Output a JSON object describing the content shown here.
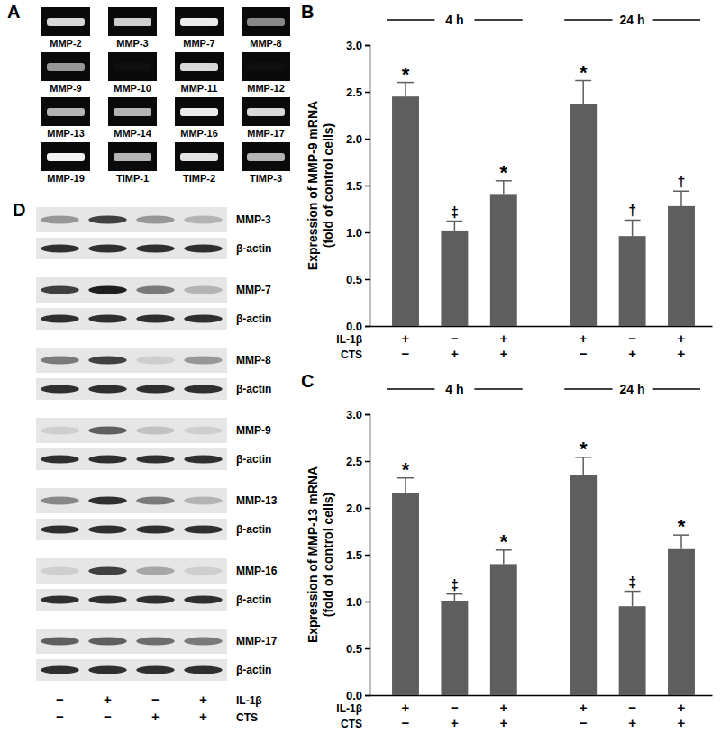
{
  "gel_panel": {
    "panel_label": "A",
    "bands": [
      {
        "label": "MMP-2",
        "intensity": 0.75
      },
      {
        "label": "MMP-3",
        "intensity": 0.7
      },
      {
        "label": "MMP-7",
        "intensity": 0.85
      },
      {
        "label": "MMP-8",
        "intensity": 0.45
      },
      {
        "label": "MMP-9",
        "intensity": 0.5
      },
      {
        "label": "MMP-10",
        "intensity": 0.05
      },
      {
        "label": "MMP-11",
        "intensity": 0.75
      },
      {
        "label": "MMP-12",
        "intensity": 0.05
      },
      {
        "label": "MMP-13",
        "intensity": 0.6
      },
      {
        "label": "MMP-14",
        "intensity": 0.6
      },
      {
        "label": "MMP-16",
        "intensity": 0.85
      },
      {
        "label": "MMP-17",
        "intensity": 0.75
      },
      {
        "label": "MMP-19",
        "intensity": 0.9
      },
      {
        "label": "TIMP-1",
        "intensity": 0.6
      },
      {
        "label": "TIMP-2",
        "intensity": 0.8
      },
      {
        "label": "TIMP-3",
        "intensity": 0.6
      }
    ]
  },
  "chart_data": [
    {
      "panel_label": "B",
      "type": "bar",
      "y_label": [
        "Expression of MMP-9 mRNA",
        "(fold of control cells)"
      ],
      "categories": [
        null,
        null,
        null,
        null,
        null,
        null
      ],
      "periods": [
        "4 h",
        "4 h",
        "4 h",
        "24 h",
        "24 h",
        "24 h"
      ],
      "values": [
        2.45,
        1.02,
        1.41,
        2.37,
        0.96,
        1.28
      ],
      "errors": [
        0.15,
        0.1,
        0.14,
        0.25,
        0.17,
        0.16
      ],
      "annotations": [
        "*",
        "‡",
        "*",
        "*",
        "†",
        "†"
      ],
      "factors": [
        {
          "name": "IL-1β",
          "levels": [
            "+",
            "−",
            "+",
            "+",
            "−",
            "+"
          ]
        },
        {
          "name": "CTS",
          "levels": [
            "−",
            "+",
            "+",
            "−",
            "+",
            "+"
          ]
        }
      ],
      "color": "#5e5e5e",
      "ylim": [
        0,
        3
      ],
      "yticks": [
        {
          "value": 0,
          "label": "0.0"
        },
        {
          "value": 0.5,
          "label": "0.5"
        },
        {
          "value": 1,
          "label": "1.0"
        },
        {
          "value": 1.5,
          "label": "1.5"
        },
        {
          "value": 2,
          "label": "2.0"
        },
        {
          "value": 2.5,
          "label": "2.5"
        },
        {
          "value": 3,
          "label": "3.0"
        }
      ]
    },
    {
      "panel_label": "C",
      "type": "bar",
      "y_label": [
        "Expression of MMP-13 mRNA",
        "(fold of control cells)"
      ],
      "categories": [
        null,
        null,
        null,
        null,
        null,
        null
      ],
      "periods": [
        "4 h",
        "4 h",
        "4 h",
        "24 h",
        "24 h",
        "24 h"
      ],
      "values": [
        2.16,
        1.01,
        1.4,
        2.35,
        0.95,
        1.56
      ],
      "errors": [
        0.16,
        0.07,
        0.15,
        0.19,
        0.16,
        0.15
      ],
      "annotations": [
        "*",
        "‡",
        "*",
        "*",
        "‡",
        "*"
      ],
      "factors": [
        {
          "name": "IL-1β",
          "levels": [
            "+",
            "−",
            "+",
            "+",
            "−",
            "+"
          ]
        },
        {
          "name": "CTS",
          "levels": [
            "−",
            "+",
            "+",
            "−",
            "+",
            "+"
          ]
        }
      ],
      "color": "#5e5e5e",
      "ylim": [
        0,
        3
      ],
      "yticks": [
        {
          "value": 0,
          "label": "0.0"
        },
        {
          "value": 0.5,
          "label": "0.5"
        },
        {
          "value": 1,
          "label": "1.0"
        },
        {
          "value": 1.5,
          "label": "1.5"
        },
        {
          "value": 2,
          "label": "2.0"
        },
        {
          "value": 2.5,
          "label": "2.5"
        },
        {
          "value": 3,
          "label": "3.0"
        }
      ]
    }
  ],
  "blot_panel": {
    "panel_label": "D",
    "rows": [
      {
        "label": "MMP-3",
        "intensity": [
          0.5,
          0.8,
          0.5,
          0.4
        ]
      },
      {
        "label": "β-actin",
        "intensity": [
          0.85,
          0.85,
          0.85,
          0.85
        ]
      },
      {
        "label": "MMP-7",
        "intensity": [
          0.8,
          0.9,
          0.6,
          0.4
        ]
      },
      {
        "label": "β-actin",
        "intensity": [
          0.85,
          0.85,
          0.85,
          0.85
        ]
      },
      {
        "label": "MMP-8",
        "intensity": [
          0.6,
          0.8,
          0.3,
          0.5
        ]
      },
      {
        "label": "β-actin",
        "intensity": [
          0.85,
          0.85,
          0.85,
          0.85
        ]
      },
      {
        "label": "MMP-9",
        "intensity": [
          0.3,
          0.7,
          0.35,
          0.3
        ]
      },
      {
        "label": "β-actin",
        "intensity": [
          0.85,
          0.85,
          0.85,
          0.85
        ]
      },
      {
        "label": "MMP-13",
        "intensity": [
          0.55,
          0.85,
          0.6,
          0.4
        ]
      },
      {
        "label": "β-actin",
        "intensity": [
          0.85,
          0.85,
          0.85,
          0.85
        ]
      },
      {
        "label": "MMP-16",
        "intensity": [
          0.3,
          0.8,
          0.45,
          0.3
        ]
      },
      {
        "label": "β-actin",
        "intensity": [
          0.85,
          0.85,
          0.85,
          0.85
        ]
      },
      {
        "label": "MMP-17",
        "intensity": [
          0.7,
          0.7,
          0.65,
          0.6
        ]
      },
      {
        "label": "β-actin",
        "intensity": [
          0.85,
          0.85,
          0.85,
          0.85
        ]
      }
    ],
    "factors": [
      {
        "name": "IL-1β",
        "levels": [
          "−",
          "+",
          "−",
          "+"
        ]
      },
      {
        "name": "CTS",
        "levels": [
          "−",
          "−",
          "+",
          "+"
        ]
      }
    ]
  }
}
